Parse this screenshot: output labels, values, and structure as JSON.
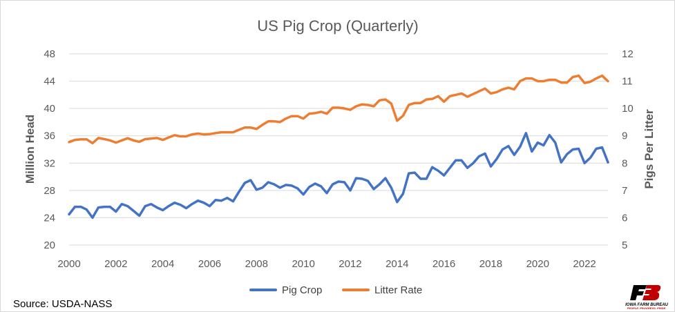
{
  "chart_data": {
    "type": "line",
    "title": "US Pig Crop (Quarterly)",
    "ylabel": "Million Head",
    "y2label": "Pigs Per Litter",
    "ylim": [
      20,
      48
    ],
    "y2lim": [
      5,
      12
    ],
    "yticks": [
      20,
      24,
      28,
      32,
      36,
      40,
      44,
      48
    ],
    "y2ticks": [
      5,
      6,
      7,
      8,
      9,
      10,
      11,
      12
    ],
    "xlim": [
      2000,
      2023
    ],
    "xticks": [
      2000,
      2002,
      2004,
      2006,
      2008,
      2010,
      2012,
      2014,
      2016,
      2018,
      2020,
      2022
    ],
    "grid": true,
    "legend_position": "bottom",
    "series": [
      {
        "name": "Pig Crop",
        "axis": "left",
        "color": "#4472c4",
        "x": [
          2000.0,
          2000.25,
          2000.5,
          2000.75,
          2001.0,
          2001.25,
          2001.5,
          2001.75,
          2002.0,
          2002.25,
          2002.5,
          2002.75,
          2003.0,
          2003.25,
          2003.5,
          2003.75,
          2004.0,
          2004.25,
          2004.5,
          2004.75,
          2005.0,
          2005.25,
          2005.5,
          2005.75,
          2006.0,
          2006.25,
          2006.5,
          2006.75,
          2007.0,
          2007.25,
          2007.5,
          2007.75,
          2008.0,
          2008.25,
          2008.5,
          2008.75,
          2009.0,
          2009.25,
          2009.5,
          2009.75,
          2010.0,
          2010.25,
          2010.5,
          2010.75,
          2011.0,
          2011.25,
          2011.5,
          2011.75,
          2012.0,
          2012.25,
          2012.5,
          2012.75,
          2013.0,
          2013.25,
          2013.5,
          2013.75,
          2014.0,
          2014.25,
          2014.5,
          2014.75,
          2015.0,
          2015.25,
          2015.5,
          2015.75,
          2016.0,
          2016.25,
          2016.5,
          2016.75,
          2017.0,
          2017.25,
          2017.5,
          2017.75,
          2018.0,
          2018.25,
          2018.5,
          2018.75,
          2019.0,
          2019.25,
          2019.5,
          2019.75,
          2020.0,
          2020.25,
          2020.5,
          2020.75,
          2021.0,
          2021.25,
          2021.5,
          2021.75,
          2022.0,
          2022.25,
          2022.5,
          2022.75,
          2023.0
        ],
        "values": [
          24.5,
          25.6,
          25.6,
          25.2,
          24.0,
          25.5,
          25.6,
          25.6,
          24.9,
          26.0,
          25.7,
          25.0,
          24.3,
          25.7,
          26.0,
          25.5,
          25.1,
          25.7,
          26.2,
          25.9,
          25.4,
          26.0,
          26.5,
          26.2,
          25.7,
          26.6,
          26.5,
          26.9,
          26.4,
          27.8,
          29.1,
          29.5,
          28.1,
          28.4,
          29.2,
          28.9,
          28.4,
          28.8,
          28.7,
          28.3,
          27.4,
          28.5,
          29.0,
          28.6,
          27.6,
          28.9,
          29.3,
          29.2,
          28.0,
          29.8,
          29.7,
          29.4,
          28.2,
          28.9,
          29.8,
          28.4,
          26.3,
          27.5,
          30.5,
          30.6,
          29.7,
          29.7,
          31.4,
          30.9,
          30.2,
          31.3,
          32.4,
          32.4,
          31.3,
          32.0,
          33.0,
          33.4,
          31.5,
          32.6,
          34.0,
          34.5,
          33.2,
          34.4,
          36.4,
          33.7,
          35.0,
          34.6,
          36.1,
          35.0,
          32.1,
          33.3,
          34.0,
          34.1,
          32.0,
          32.8,
          34.1,
          34.3,
          32.1
        ]
      },
      {
        "name": "Litter Rate",
        "axis": "right",
        "color": "#ed7d31",
        "x": [
          2000.0,
          2000.25,
          2000.5,
          2000.75,
          2001.0,
          2001.25,
          2001.5,
          2001.75,
          2002.0,
          2002.25,
          2002.5,
          2002.75,
          2003.0,
          2003.25,
          2003.5,
          2003.75,
          2004.0,
          2004.25,
          2004.5,
          2004.75,
          2005.0,
          2005.25,
          2005.5,
          2005.75,
          2006.0,
          2006.25,
          2006.5,
          2006.75,
          2007.0,
          2007.25,
          2007.5,
          2007.75,
          2008.0,
          2008.25,
          2008.5,
          2008.75,
          2009.0,
          2009.25,
          2009.5,
          2009.75,
          2010.0,
          2010.25,
          2010.5,
          2010.75,
          2011.0,
          2011.25,
          2011.5,
          2011.75,
          2012.0,
          2012.25,
          2012.5,
          2012.75,
          2013.0,
          2013.25,
          2013.5,
          2013.75,
          2014.0,
          2014.25,
          2014.5,
          2014.75,
          2015.0,
          2015.25,
          2015.5,
          2015.75,
          2016.0,
          2016.25,
          2016.5,
          2016.75,
          2017.0,
          2017.25,
          2017.5,
          2017.75,
          2018.0,
          2018.25,
          2018.5,
          2018.75,
          2019.0,
          2019.25,
          2019.5,
          2019.75,
          2020.0,
          2020.25,
          2020.5,
          2020.75,
          2021.0,
          2021.25,
          2021.5,
          2021.75,
          2022.0,
          2022.25,
          2022.5,
          2022.75,
          2023.0
        ],
        "values": [
          8.77,
          8.85,
          8.87,
          8.87,
          8.73,
          8.92,
          8.88,
          8.83,
          8.75,
          8.83,
          8.91,
          8.83,
          8.78,
          8.88,
          8.9,
          8.92,
          8.85,
          8.94,
          9.02,
          8.98,
          8.98,
          9.05,
          9.08,
          9.05,
          9.06,
          9.1,
          9.13,
          9.13,
          9.13,
          9.22,
          9.3,
          9.3,
          9.25,
          9.4,
          9.53,
          9.53,
          9.5,
          9.63,
          9.72,
          9.72,
          9.63,
          9.81,
          9.83,
          9.88,
          9.81,
          10.03,
          10.03,
          10.0,
          9.95,
          10.08,
          10.15,
          10.13,
          10.08,
          10.3,
          10.33,
          10.18,
          9.55,
          9.73,
          10.13,
          10.2,
          10.2,
          10.33,
          10.35,
          10.45,
          10.25,
          10.45,
          10.5,
          10.55,
          10.43,
          10.53,
          10.63,
          10.73,
          10.55,
          10.6,
          10.7,
          10.76,
          10.7,
          11.0,
          11.1,
          11.1,
          11.0,
          11.0,
          11.05,
          11.05,
          10.95,
          10.95,
          11.15,
          11.2,
          10.93,
          10.98,
          11.1,
          11.2,
          11.0
        ]
      }
    ]
  },
  "legend": {
    "items": [
      {
        "label": "Pig Crop",
        "color": "#4472c4"
      },
      {
        "label": "Litter Rate",
        "color": "#ed7d31"
      }
    ]
  },
  "source": "Source: USDA-NASS",
  "logo": {
    "mark": "FB",
    "name": "IOWA FARM BUREAU",
    "tagline": "PEOPLE. PROGRESS. PRIDE."
  }
}
